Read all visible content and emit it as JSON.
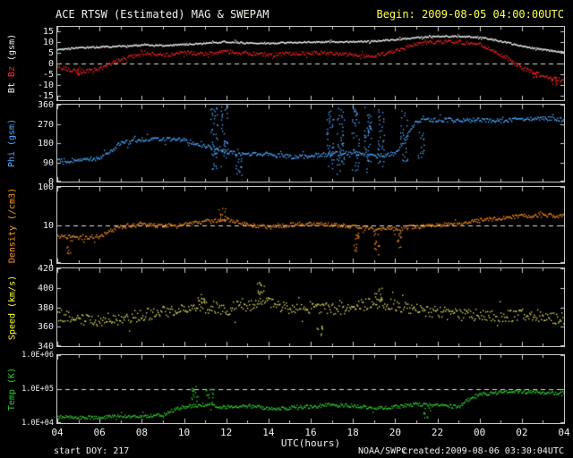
{
  "header": {
    "title": "ACE RTSW (Estimated) MAG & SWEPAM",
    "begin": "Begin: 2009-08-05 04:00:00UTC"
  },
  "footer": {
    "start_doy": "start DOY: 217",
    "agency": "NOAA/SWPC",
    "created": "created:2009-08-06 03:30:04UTC"
  },
  "chart_data": {
    "type": "scatter",
    "title": "ACE RTSW (Estimated) MAG & SWEPAM",
    "grid": false,
    "x": {
      "label": "UTC(hours)",
      "start_hour": 4,
      "end_hour": 28,
      "anchor_hours": [
        4,
        5,
        6,
        7,
        8,
        9,
        10,
        11,
        12,
        13,
        14,
        15,
        16,
        17,
        18,
        19,
        20,
        21,
        22,
        23,
        24,
        25,
        26,
        27,
        28
      ],
      "tick_step": 2,
      "tick_labels": [
        "04",
        "06",
        "08",
        "10",
        "12",
        "14",
        "16",
        "18",
        "20",
        "22",
        "00",
        "02",
        "04"
      ]
    },
    "panels": [
      {
        "name": "mag",
        "label_parts": [
          {
            "text": "Bt ",
            "color": "#f2f2f2"
          },
          {
            "text": "Bz",
            "color": "#ff3030"
          },
          {
            "text": " (gsm)",
            "color": "#f2f2f2"
          }
        ],
        "scale": "linear",
        "ymin": -17,
        "ymax": 17,
        "ticks": [
          {
            "v": 15,
            "t": "15"
          },
          {
            "v": 10,
            "t": "10"
          },
          {
            "v": 5,
            "t": "5"
          },
          {
            "v": 0,
            "t": "0"
          },
          {
            "v": -5,
            "t": "-5"
          },
          {
            "v": -10,
            "t": "-10"
          },
          {
            "v": -15,
            "t": "-15"
          }
        ],
        "dashed_at": 0,
        "series": [
          {
            "name": "Bt",
            "color": "#f5f5f0",
            "noise": 0.35,
            "values": [
              6.5,
              7.2,
              7.6,
              8.0,
              8.4,
              8.3,
              8.8,
              9.3,
              10.0,
              9.6,
              9.4,
              9.6,
              10.0,
              9.9,
              10.1,
              10.4,
              11.0,
              12.0,
              12.6,
              12.5,
              12.2,
              10.2,
              8.0,
              6.3,
              5.2
            ]
          },
          {
            "name": "Bz",
            "color": "#ee2222",
            "noise": 0.9,
            "values": [
              -1.5,
              -4.0,
              -2.5,
              2.0,
              4.5,
              4.0,
              5.0,
              4.2,
              5.5,
              4.6,
              4.0,
              4.4,
              5.0,
              4.6,
              4.0,
              3.2,
              6.0,
              9.0,
              10.0,
              10.0,
              9.0,
              4.0,
              -2.0,
              -6.0,
              -8.0
            ],
            "bursts": [
              {
                "x": 5.0,
                "lo": -5.5,
                "hi": -2.0,
                "n": 8
              },
              {
                "x": 26.6,
                "lo": -9.0,
                "hi": -4.0,
                "n": 8
              },
              {
                "x": 27.5,
                "lo": -10.0,
                "hi": -6.0,
                "n": 10
              }
            ]
          }
        ]
      },
      {
        "name": "phi",
        "label_parts": [
          {
            "text": "Phi (gsm)",
            "color": "#4aa8ff"
          }
        ],
        "scale": "linear",
        "ymin": 0,
        "ymax": 360,
        "ticks": [
          {
            "v": 360,
            "t": "360"
          },
          {
            "v": 270,
            "t": "270"
          },
          {
            "v": 180,
            "t": "180"
          },
          {
            "v": 90,
            "t": "90"
          },
          {
            "v": 0,
            "t": "0"
          }
        ],
        "dashed_at": null,
        "series": [
          {
            "name": "Phi",
            "color": "#4aa8ff",
            "noise": 10,
            "values": [
              95,
              100,
              108,
              180,
              195,
              200,
              195,
              165,
              140,
              125,
              130,
              115,
              120,
              130,
              135,
              120,
              130,
              285,
              290,
              285,
              288,
              285,
              292,
              295,
              288
            ],
            "bursts": [
              {
                "x": 11.4,
                "lo": 40,
                "hi": 350,
                "n": 40
              },
              {
                "x": 11.9,
                "lo": 60,
                "hi": 355,
                "n": 30
              },
              {
                "x": 12.6,
                "lo": 30,
                "hi": 120,
                "n": 15
              },
              {
                "x": 16.9,
                "lo": 40,
                "hi": 340,
                "n": 35
              },
              {
                "x": 17.4,
                "lo": 30,
                "hi": 350,
                "n": 40
              },
              {
                "x": 18.1,
                "lo": 50,
                "hi": 355,
                "n": 35
              },
              {
                "x": 18.7,
                "lo": 40,
                "hi": 350,
                "n": 40
              },
              {
                "x": 19.3,
                "lo": 60,
                "hi": 340,
                "n": 30
              },
              {
                "x": 20.4,
                "lo": 90,
                "hi": 330,
                "n": 25
              },
              {
                "x": 21.2,
                "lo": 100,
                "hi": 260,
                "n": 15
              }
            ]
          }
        ]
      },
      {
        "name": "density",
        "label_parts": [
          {
            "text": "Density (/cm3)",
            "color": "#ff9a2a"
          }
        ],
        "scale": "log",
        "ymin": 1,
        "ymax": 100,
        "ticks": [
          {
            "v": 100,
            "t": "100"
          },
          {
            "v": 10,
            "t": "10"
          },
          {
            "v": 1,
            "t": "1"
          }
        ],
        "dashed_at": 10,
        "series": [
          {
            "name": "Density",
            "color": "#ee8820",
            "noise": 0.055,
            "values": [
              5,
              4.5,
              5,
              9,
              10,
              9.5,
              10,
              12,
              14,
              10,
              9,
              10,
              11,
              10,
              9,
              7.5,
              8,
              9,
              10,
              10.5,
              13,
              15,
              17,
              18,
              17
            ],
            "bursts": [
              {
                "x": 11.8,
                "lo": 12,
                "hi": 28,
                "n": 12
              },
              {
                "x": 18.1,
                "lo": 2,
                "hi": 7,
                "n": 14
              },
              {
                "x": 19.1,
                "lo": 1.6,
                "hi": 6,
                "n": 14
              },
              {
                "x": 20.1,
                "lo": 2,
                "hi": 7,
                "n": 10
              },
              {
                "x": 4.6,
                "lo": 1.5,
                "hi": 4,
                "n": 8
              }
            ]
          }
        ]
      },
      {
        "name": "speed",
        "label_parts": [
          {
            "text": "Speed (km/s)",
            "color": "#ffff33"
          }
        ],
        "scale": "linear",
        "ymin": 340,
        "ymax": 420,
        "ticks": [
          {
            "v": 420,
            "t": "420"
          },
          {
            "v": 400,
            "t": "400"
          },
          {
            "v": 380,
            "t": "380"
          },
          {
            "v": 360,
            "t": "360"
          },
          {
            "v": 340,
            "t": "340"
          }
        ],
        "dashed_at": null,
        "series": [
          {
            "name": "Speed",
            "color": "#d8d860",
            "noise": 6,
            "values": [
              372,
              368,
              365,
              368,
              372,
              375,
              378,
              380,
              378,
              382,
              385,
              378,
              380,
              378,
              380,
              385,
              382,
              378,
              375,
              372,
              372,
              370,
              372,
              370,
              368
            ],
            "bursts": [
              {
                "x": 10.8,
                "lo": 385,
                "hi": 398,
                "n": 8
              },
              {
                "x": 13.6,
                "lo": 388,
                "hi": 406,
                "n": 12
              },
              {
                "x": 19.2,
                "lo": 386,
                "hi": 400,
                "n": 10
              },
              {
                "x": 16.4,
                "lo": 350,
                "hi": 362,
                "n": 8
              }
            ]
          }
        ]
      },
      {
        "name": "temp",
        "label_parts": [
          {
            "text": "Temp (K)",
            "color": "#2ecc2e"
          }
        ],
        "scale": "log",
        "ymin": 10000,
        "ymax": 1000000,
        "ticks": [
          {
            "v": 1000000,
            "t": "1.0E+06"
          },
          {
            "v": 100000,
            "t": "1.0E+05"
          },
          {
            "v": 10000,
            "t": "1.0E+04"
          }
        ],
        "dashed_at": 100000,
        "series": [
          {
            "name": "Temp",
            "color": "#33cc33",
            "noise": 0.055,
            "values": [
              15000,
              14000,
              15000,
              16000,
              15000,
              18000,
              30000,
              35000,
              30000,
              32000,
              26000,
              28000,
              30000,
              35000,
              32000,
              28000,
              30000,
              35000,
              32000,
              30000,
              70000,
              80000,
              85000,
              80000,
              75000
            ],
            "bursts": [
              {
                "x": 10.5,
                "lo": 40000,
                "hi": 120000,
                "n": 14
              },
              {
                "x": 11.2,
                "lo": 40000,
                "hi": 100000,
                "n": 12
              },
              {
                "x": 21.5,
                "lo": 12000,
                "hi": 30000,
                "n": 10
              }
            ]
          }
        ]
      }
    ]
  }
}
